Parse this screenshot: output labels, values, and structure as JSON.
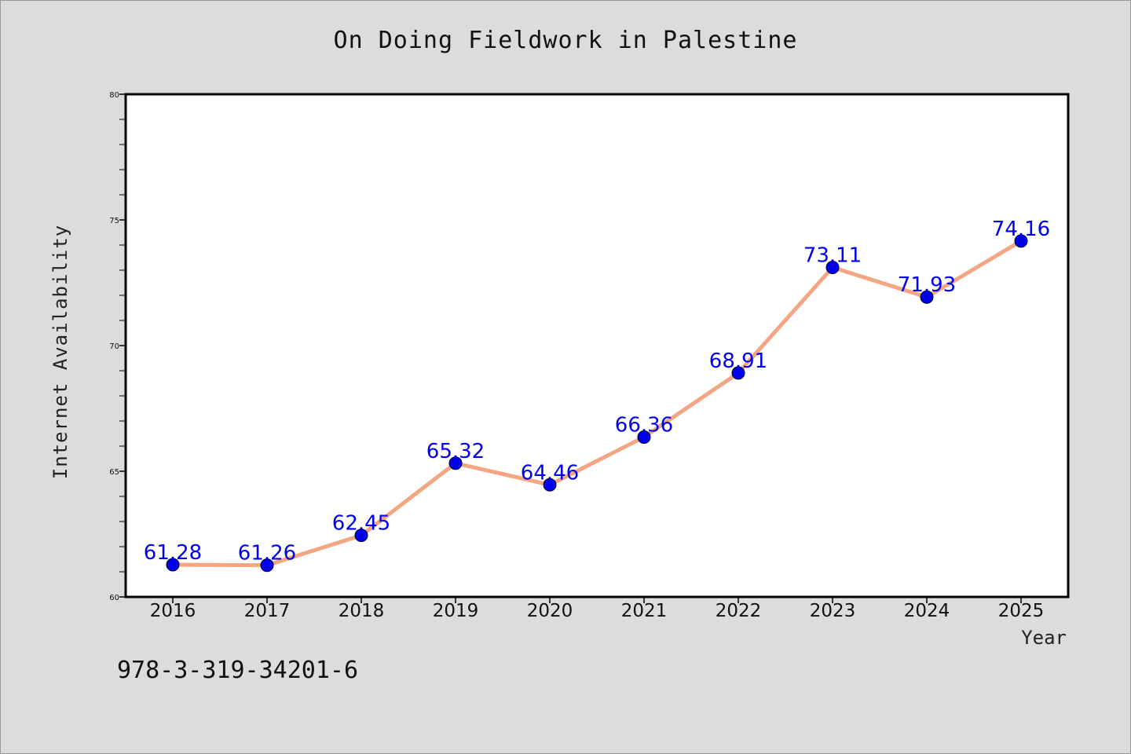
{
  "chart_data": {
    "type": "line",
    "title": "On Doing Fieldwork in Palestine",
    "xlabel": "Year",
    "ylabel": "Internet Availability",
    "categories": [
      "2016",
      "2017",
      "2018",
      "2019",
      "2020",
      "2021",
      "2022",
      "2023",
      "2024",
      "2025"
    ],
    "series": [
      {
        "values": [
          61.28,
          61.26,
          62.45,
          65.32,
          64.46,
          66.36,
          68.91,
          73.11,
          71.93,
          74.16
        ],
        "labels": [
          "61.28",
          "61.26",
          "62.45",
          "65.32",
          "64.46",
          "66.36",
          "68.91",
          "73.11",
          "71.93",
          "74.16"
        ]
      }
    ],
    "ylim": [
      60,
      80
    ],
    "y_ticks": [
      "60",
      "65",
      "70",
      "75",
      "80"
    ],
    "grid": false,
    "line_color": "#f4a582",
    "marker_color": "#0000ee",
    "label_color": "#0000ee"
  },
  "footnote": "978-3-319-34201-6"
}
